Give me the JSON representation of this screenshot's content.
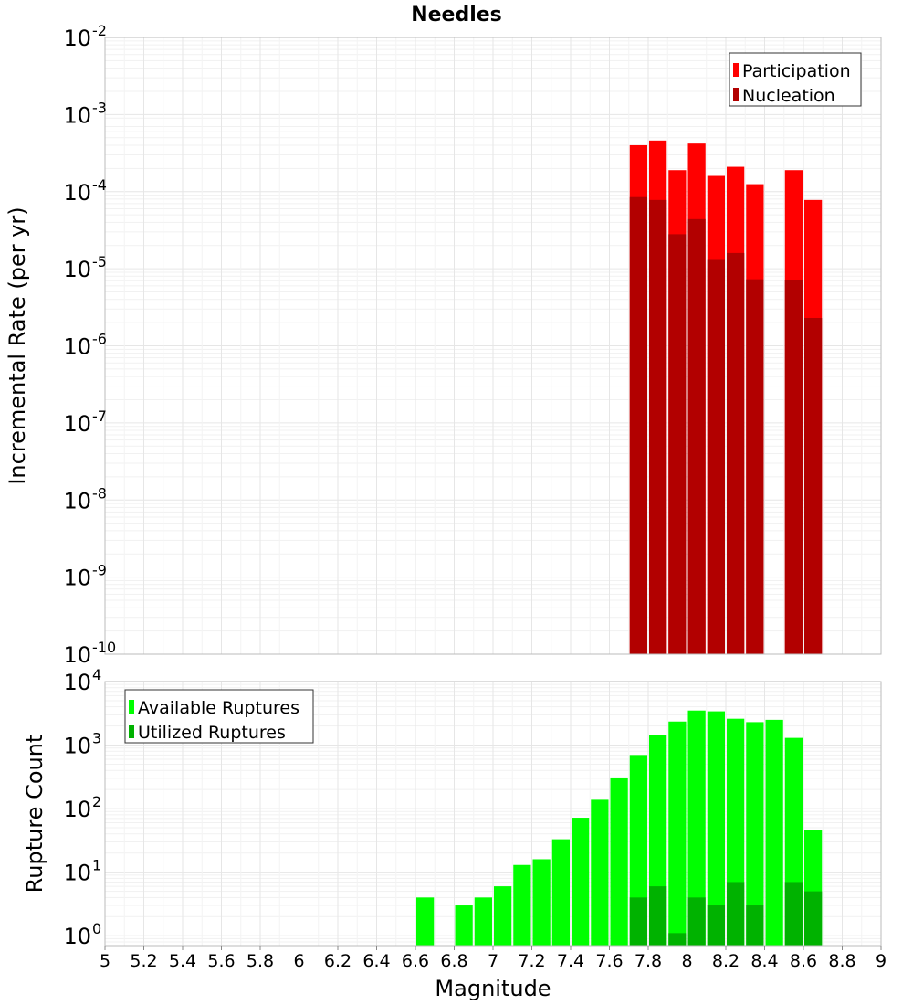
{
  "title": "Needles",
  "xlabel": "Magnitude",
  "x_ticks": [
    "5",
    "5.2",
    "5.4",
    "5.6",
    "5.8",
    "6",
    "6.2",
    "6.4",
    "6.6",
    "6.8",
    "7",
    "7.2",
    "7.4",
    "7.6",
    "7.8",
    "8",
    "8.2",
    "8.4",
    "8.6",
    "8.8",
    "9"
  ],
  "colors": {
    "participation": "#ff0000",
    "nucleation": "#b20000",
    "available": "#00ff00",
    "utilized": "#00b200",
    "grid": "#e6e6e6",
    "frame": "#bbbbbb"
  },
  "chart_data": [
    {
      "type": "bar",
      "panel": "top",
      "ylabel": "Incremental Rate (per yr)",
      "yscale": "log",
      "ylim": [
        1e-10,
        0.01
      ],
      "xlim": [
        5,
        9
      ],
      "bin_width": 0.1,
      "y_ticks": [
        {
          "base": "10",
          "exp": "-10",
          "value": 1e-10
        },
        {
          "base": "10",
          "exp": "-9",
          "value": 1e-09
        },
        {
          "base": "10",
          "exp": "-8",
          "value": 1e-08
        },
        {
          "base": "10",
          "exp": "-7",
          "value": 1e-07
        },
        {
          "base": "10",
          "exp": "-6",
          "value": 1e-06
        },
        {
          "base": "10",
          "exp": "-5",
          "value": 1e-05
        },
        {
          "base": "10",
          "exp": "-4",
          "value": 0.0001
        },
        {
          "base": "10",
          "exp": "-3",
          "value": 0.001
        },
        {
          "base": "10",
          "exp": "-2",
          "value": 0.01
        }
      ],
      "legend_position": "top-right",
      "x": [
        7.75,
        7.85,
        7.95,
        8.05,
        8.15,
        8.25,
        8.35,
        8.55,
        8.65
      ],
      "series": [
        {
          "name": "Participation",
          "values": [
            0.0004,
            0.00046,
            0.00019,
            0.00042,
            0.00016,
            0.00021,
            0.000125,
            0.00019,
            7.8e-05
          ]
        },
        {
          "name": "Nucleation",
          "values": [
            8.5e-05,
            7.8e-05,
            2.8e-05,
            4.4e-05,
            1.3e-05,
            1.6e-05,
            7.3e-06,
            7.2e-06,
            2.3e-06
          ]
        }
      ]
    },
    {
      "type": "bar",
      "panel": "bottom",
      "ylabel": "Rupture Count",
      "yscale": "log",
      "ylim": [
        0.7,
        10000
      ],
      "xlim": [
        5,
        9
      ],
      "bin_width": 0.1,
      "y_ticks": [
        {
          "base": "10",
          "exp": "0",
          "value": 1
        },
        {
          "base": "10",
          "exp": "1",
          "value": 10
        },
        {
          "base": "10",
          "exp": "2",
          "value": 100
        },
        {
          "base": "10",
          "exp": "3",
          "value": 1000
        },
        {
          "base": "10",
          "exp": "4",
          "value": 10000
        }
      ],
      "legend_position": "top-left",
      "x": [
        6.65,
        6.85,
        6.95,
        7.05,
        7.15,
        7.25,
        7.35,
        7.45,
        7.55,
        7.65,
        7.75,
        7.85,
        7.95,
        8.05,
        8.15,
        8.25,
        8.35,
        8.45,
        8.55,
        8.65
      ],
      "series": [
        {
          "name": "Available Ruptures",
          "values": [
            4,
            3,
            4,
            6,
            13,
            16,
            33,
            72,
            138,
            310,
            700,
            1450,
            2350,
            3500,
            3400,
            2600,
            2300,
            2500,
            1300,
            46
          ]
        },
        {
          "name": "Utilized Ruptures",
          "values": [
            0,
            0,
            0,
            0,
            0,
            0,
            0,
            0,
            0,
            0,
            4,
            6,
            1.1,
            4,
            3,
            7,
            3,
            0,
            7,
            5
          ]
        }
      ]
    }
  ]
}
